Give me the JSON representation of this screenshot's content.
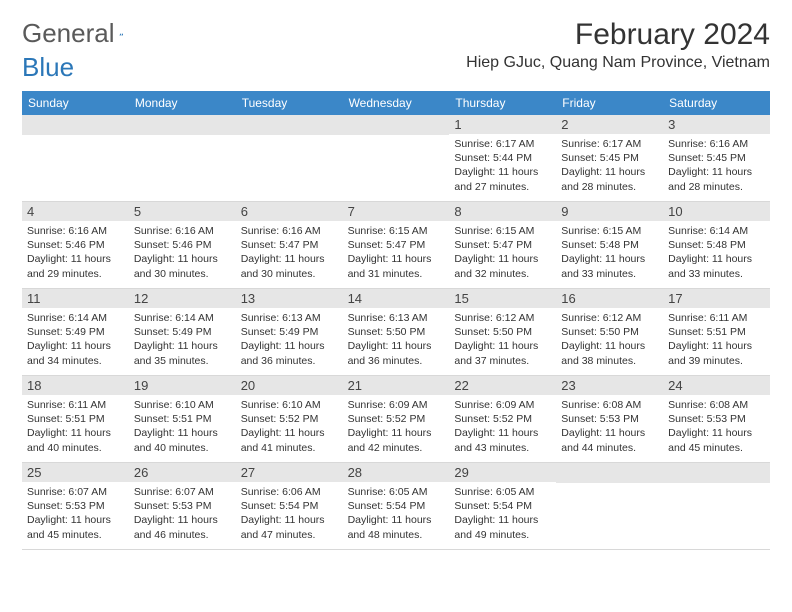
{
  "brand": {
    "text1": "General",
    "text2": "Blue",
    "logo_color": "#2b77b8"
  },
  "title": "February 2024",
  "location": "Hiep GJuc, Quang Nam Province, Vietnam",
  "colors": {
    "header_bg": "#3b87c8",
    "band_bg": "#e6e6e6",
    "text": "#333333",
    "border": "#d8d8d8"
  },
  "weekdays": [
    "Sunday",
    "Monday",
    "Tuesday",
    "Wednesday",
    "Thursday",
    "Friday",
    "Saturday"
  ],
  "weeks": [
    [
      null,
      null,
      null,
      null,
      {
        "n": "1",
        "sr": "6:17 AM",
        "ss": "5:44 PM",
        "dl": "11 hours and 27 minutes."
      },
      {
        "n": "2",
        "sr": "6:17 AM",
        "ss": "5:45 PM",
        "dl": "11 hours and 28 minutes."
      },
      {
        "n": "3",
        "sr": "6:16 AM",
        "ss": "5:45 PM",
        "dl": "11 hours and 28 minutes."
      }
    ],
    [
      {
        "n": "4",
        "sr": "6:16 AM",
        "ss": "5:46 PM",
        "dl": "11 hours and 29 minutes."
      },
      {
        "n": "5",
        "sr": "6:16 AM",
        "ss": "5:46 PM",
        "dl": "11 hours and 30 minutes."
      },
      {
        "n": "6",
        "sr": "6:16 AM",
        "ss": "5:47 PM",
        "dl": "11 hours and 30 minutes."
      },
      {
        "n": "7",
        "sr": "6:15 AM",
        "ss": "5:47 PM",
        "dl": "11 hours and 31 minutes."
      },
      {
        "n": "8",
        "sr": "6:15 AM",
        "ss": "5:47 PM",
        "dl": "11 hours and 32 minutes."
      },
      {
        "n": "9",
        "sr": "6:15 AM",
        "ss": "5:48 PM",
        "dl": "11 hours and 33 minutes."
      },
      {
        "n": "10",
        "sr": "6:14 AM",
        "ss": "5:48 PM",
        "dl": "11 hours and 33 minutes."
      }
    ],
    [
      {
        "n": "11",
        "sr": "6:14 AM",
        "ss": "5:49 PM",
        "dl": "11 hours and 34 minutes."
      },
      {
        "n": "12",
        "sr": "6:14 AM",
        "ss": "5:49 PM",
        "dl": "11 hours and 35 minutes."
      },
      {
        "n": "13",
        "sr": "6:13 AM",
        "ss": "5:49 PM",
        "dl": "11 hours and 36 minutes."
      },
      {
        "n": "14",
        "sr": "6:13 AM",
        "ss": "5:50 PM",
        "dl": "11 hours and 36 minutes."
      },
      {
        "n": "15",
        "sr": "6:12 AM",
        "ss": "5:50 PM",
        "dl": "11 hours and 37 minutes."
      },
      {
        "n": "16",
        "sr": "6:12 AM",
        "ss": "5:50 PM",
        "dl": "11 hours and 38 minutes."
      },
      {
        "n": "17",
        "sr": "6:11 AM",
        "ss": "5:51 PM",
        "dl": "11 hours and 39 minutes."
      }
    ],
    [
      {
        "n": "18",
        "sr": "6:11 AM",
        "ss": "5:51 PM",
        "dl": "11 hours and 40 minutes."
      },
      {
        "n": "19",
        "sr": "6:10 AM",
        "ss": "5:51 PM",
        "dl": "11 hours and 40 minutes."
      },
      {
        "n": "20",
        "sr": "6:10 AM",
        "ss": "5:52 PM",
        "dl": "11 hours and 41 minutes."
      },
      {
        "n": "21",
        "sr": "6:09 AM",
        "ss": "5:52 PM",
        "dl": "11 hours and 42 minutes."
      },
      {
        "n": "22",
        "sr": "6:09 AM",
        "ss": "5:52 PM",
        "dl": "11 hours and 43 minutes."
      },
      {
        "n": "23",
        "sr": "6:08 AM",
        "ss": "5:53 PM",
        "dl": "11 hours and 44 minutes."
      },
      {
        "n": "24",
        "sr": "6:08 AM",
        "ss": "5:53 PM",
        "dl": "11 hours and 45 minutes."
      }
    ],
    [
      {
        "n": "25",
        "sr": "6:07 AM",
        "ss": "5:53 PM",
        "dl": "11 hours and 45 minutes."
      },
      {
        "n": "26",
        "sr": "6:07 AM",
        "ss": "5:53 PM",
        "dl": "11 hours and 46 minutes."
      },
      {
        "n": "27",
        "sr": "6:06 AM",
        "ss": "5:54 PM",
        "dl": "11 hours and 47 minutes."
      },
      {
        "n": "28",
        "sr": "6:05 AM",
        "ss": "5:54 PM",
        "dl": "11 hours and 48 minutes."
      },
      {
        "n": "29",
        "sr": "6:05 AM",
        "ss": "5:54 PM",
        "dl": "11 hours and 49 minutes."
      },
      null,
      null
    ]
  ],
  "labels": {
    "sunrise": "Sunrise:",
    "sunset": "Sunset:",
    "daylight": "Daylight:"
  }
}
